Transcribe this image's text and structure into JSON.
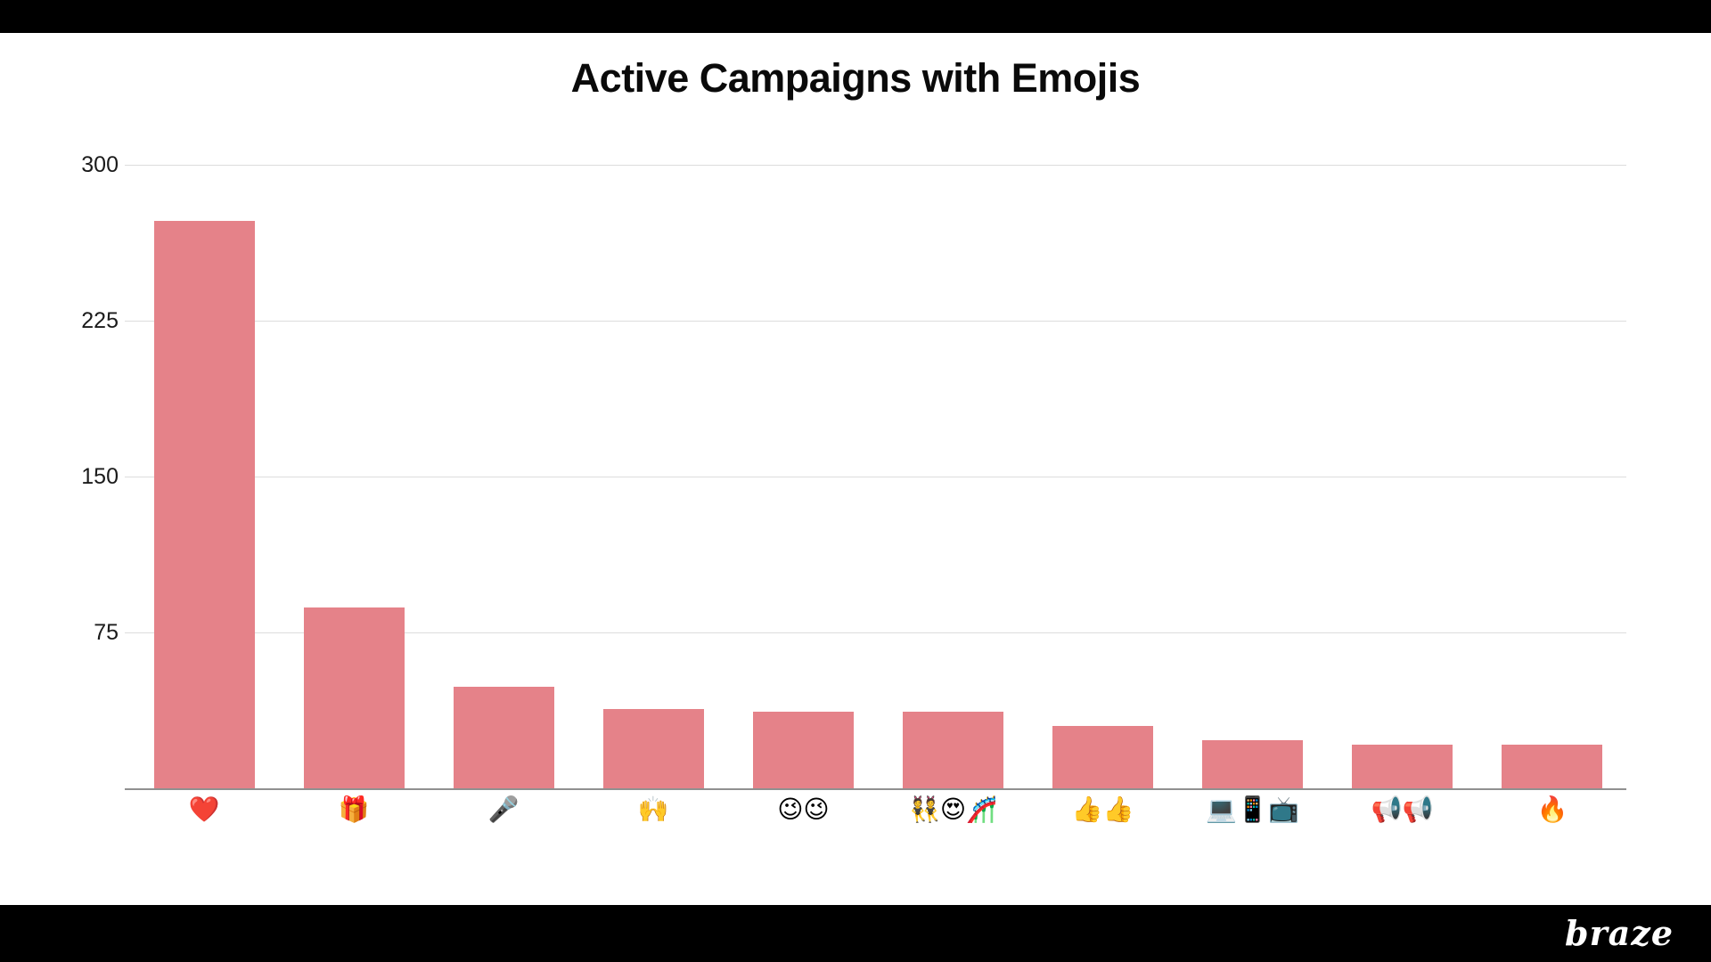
{
  "page": {
    "background": "#ffffff",
    "top_bar_color": "#000000",
    "bottom_bar_color": "#000000"
  },
  "header": {
    "title": "Active Campaigns with Emojis"
  },
  "footer": {
    "brand": "braze"
  },
  "chart_data": {
    "type": "bar",
    "title": "Active Campaigns with Emojis",
    "categories": [
      "❤️",
      "🎁",
      "🎤",
      "🙌",
      "😉😉",
      "👯😍🎢",
      "👍👍",
      "💻📱📺",
      "📢📢",
      "🔥"
    ],
    "values": [
      273,
      87,
      49,
      38,
      37,
      37,
      30,
      23,
      21,
      21
    ],
    "xlabel": "",
    "ylabel": "",
    "ylim": [
      0,
      300
    ],
    "yticks": [
      75,
      150,
      225,
      300
    ],
    "grid": true,
    "legend_position": "none",
    "bar_color": "#E58289",
    "grid_color": "#DDDDDD",
    "axis_color": "#909090",
    "tick_label_color": "#1B1B1B",
    "title_color": "#0A0A0A"
  }
}
